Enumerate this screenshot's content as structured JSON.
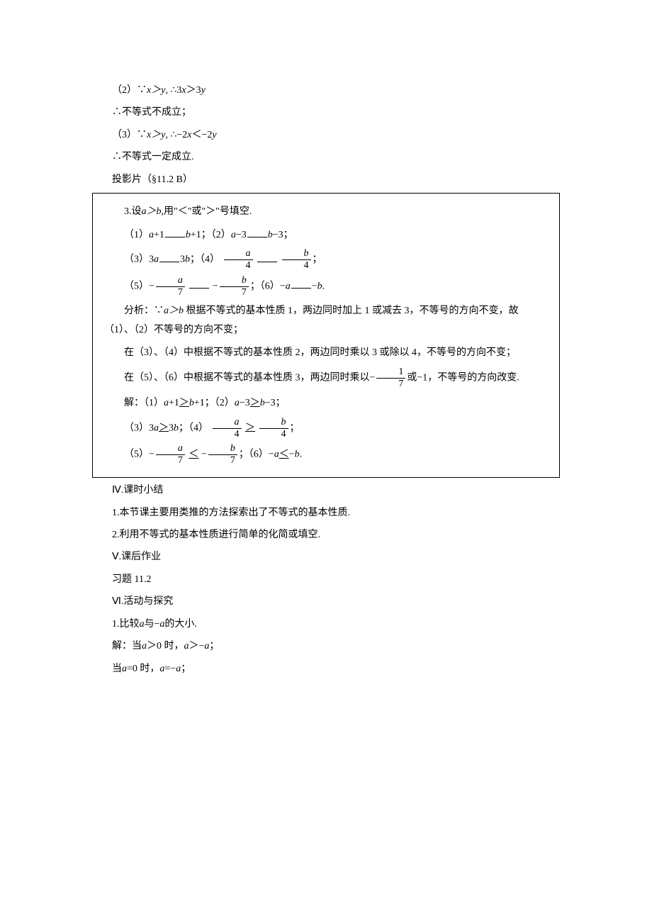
{
  "colors": {
    "text": "#000000",
    "bg": "#ffffff",
    "border": "#000000"
  },
  "typography": {
    "body_fontsize_pt": 11,
    "font_family": "SimSun"
  },
  "p1": "（2）∵",
  "p1_xy": "x＞y",
  "p1_b": ", ∴3",
  "p1_x": "x",
  "p1_c": "＞3",
  "p1_y": "y",
  "p2_a": "∴不等式不成立；",
  "p3": "（3）∵",
  "p3_xy": "x＞y",
  "p3_b": ", ∴−2",
  "p3_x": "x",
  "p3_c": "＜−2",
  "p3_y": "y",
  "p4": "∴不等式一定成立.",
  "p5": "投影片（§11.2 B）",
  "box": {
    "l1a": "3.设",
    "l1_agtb": "a＞b",
    "l1b": ",用\"＜\"或\"＞\"号填空.",
    "l2a": "（1）",
    "l2_a": "a",
    "l2b": "+1",
    "l2_b": "b",
    "l2c": "+1；（2）",
    "l2_a2": "a",
    "l2d": "−3",
    "l2_b2": "b",
    "l2e": "−3；",
    "l3a": "（3）3",
    "l3_a": "a",
    "l3b": "3",
    "l3_b": "b",
    "l3c": "；（4）",
    "l3_fa_n": "a",
    "l3_fa_d": "4",
    "l3_fb_n": "b",
    "l3_fb_d": "4",
    "l3d": "；",
    "l4a": "（5）−",
    "l4_fa_n": "a",
    "l4_fa_d": "7",
    "l4b": "−",
    "l4_fb_n": "b",
    "l4_fb_d": "7",
    "l4c": "；（6）−",
    "l4_a": "a",
    "l4d": "−",
    "l4_b": "b",
    "l4e": ".",
    "a1a": "分析：∵",
    "a1_agtb": "a＞b",
    "a1b": " 根据不等式的基本性质 1，两边同时加上 1 或减去 3，不等号的方向不变，故（1）、（2）不等号的方向不变；",
    "a2": "在（3）、（4）中根据不等式的基本性质 2，两边同时乘以 3 或除以 4，不等号的方向不变；",
    "a3a": "在（5）、（6）中根据不等式的基本性质 3，两边同时乘以−",
    "a3_f_n": "1",
    "a3_f_d": "7",
    "a3b": "或−1，不等号的方向改变.",
    "s1a": "解：（1）",
    "s1_a": "a",
    "s1b": "+1",
    "s1_gt": "＞",
    "s1_b": "b",
    "s1c": "+1；（2）",
    "s1_a2": "a",
    "s1d": "−3",
    "s1_gt2": "＞",
    "s1_b2": "b",
    "s1e": "−3；",
    "s2a": "（3）3",
    "s2_a": "a",
    "s2_gt": "＞",
    "s2b": "3",
    "s2_b": "b",
    "s2c": "；（4）",
    "s2_fa_n": "a",
    "s2_fa_d": "4",
    "s2_gt2": "＞",
    "s2_fb_n": "b",
    "s2_fb_d": "4",
    "s2d": "；",
    "s3a": "（5）−",
    "s3_fa_n": "a",
    "s3_fa_d": "7",
    "s3_lt": "＜",
    "s3b": "−",
    "s3_fb_n": "b",
    "s3_fb_d": "7",
    "s3c": "；（6）−",
    "s3_a": "a",
    "s3_lt2": "＜",
    "s3d": "−",
    "s3_b": "b",
    "s3e": "."
  },
  "p6": "Ⅳ.课时小结",
  "p7": "1.本节课主要用类推的方法探索出了不等式的基本性质.",
  "p8": "2.利用不等式的基本性质进行简单的化简或填空.",
  "p9": "Ⅴ.课后作业",
  "p10": "习题 11.2",
  "p11": "Ⅵ.活动与探究",
  "p12a": "1.比较",
  "p12_a": "a",
  "p12b": "与−",
  "p12_a2": "a",
  "p12c": "的大小.",
  "p13a": "解：当",
  "p13_a": "a",
  "p13b": "＞0 时，",
  "p13_a2": "a",
  "p13c": "＞−",
  "p13_a3": "a",
  "p13d": "；",
  "p14a": "当",
  "p14_a": "a",
  "p14b": "=0 时，",
  "p14_a2": "a",
  "p14c": "=−",
  "p14_a3": "a",
  "p14d": "；"
}
